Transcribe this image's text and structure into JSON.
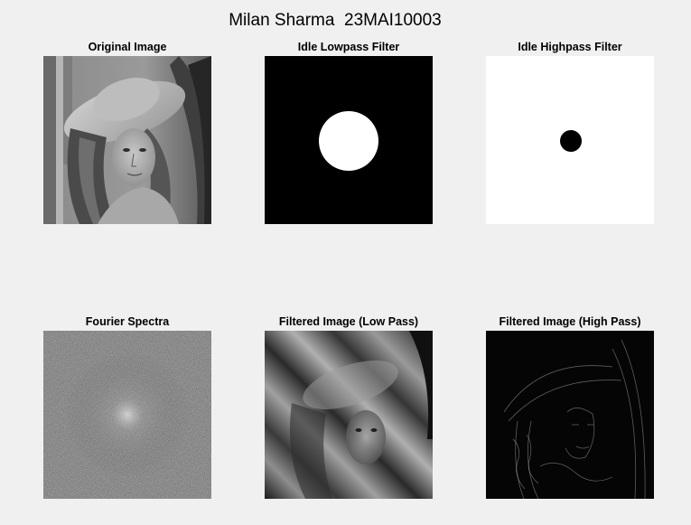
{
  "figure": {
    "title": "Milan Sharma  23MAI10003"
  },
  "panels": [
    {
      "title": "Original Image"
    },
    {
      "title": "Idle Lowpass Filter"
    },
    {
      "title": "Idle Highpass Filter"
    },
    {
      "title": "Fourier Spectra"
    },
    {
      "title": "Filtered Image (Low Pass)"
    },
    {
      "title": "Filtered Image (High Pass)"
    }
  ]
}
